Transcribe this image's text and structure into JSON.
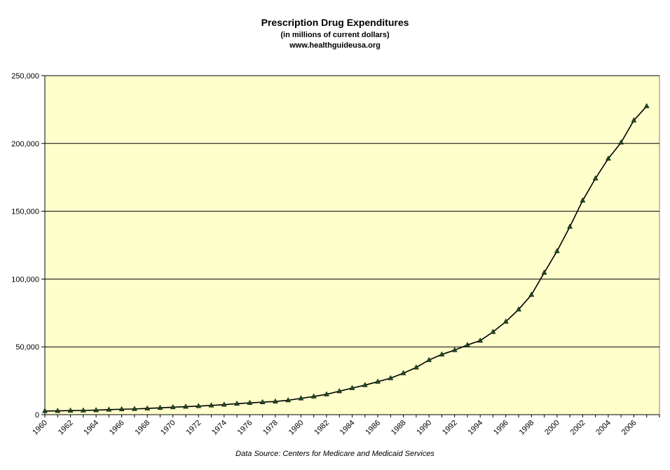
{
  "chart_data": {
    "type": "line",
    "title": "Prescription Drug Expenditures",
    "subtitle": "(in millions of current dollars)",
    "website": "www.healthguideusa.org",
    "source": "Data Source: Centers for Medicare and Medicaid Services",
    "xlabel": "",
    "ylabel": "",
    "ylim": [
      0,
      250000
    ],
    "yticks": [
      0,
      50000,
      100000,
      150000,
      200000,
      250000
    ],
    "ytick_labels": [
      "0",
      "50,000",
      "100,000",
      "150,000",
      "200,000",
      "250,000"
    ],
    "xlim": [
      1960,
      2008
    ],
    "xticks": [
      "1960",
      "1962",
      "1964",
      "1966",
      "1968",
      "1970",
      "1972",
      "1974",
      "1976",
      "1978",
      "1980",
      "1982",
      "1984",
      "1986",
      "1988",
      "1990",
      "1992",
      "1994",
      "1996",
      "1998",
      "2000",
      "2002",
      "2004",
      "2006"
    ],
    "grid": true,
    "plot_background": "#ffffcc",
    "line_color": "#000000",
    "marker_color": "#1f4d1f",
    "marker": "triangle",
    "series": [
      {
        "x": [
          1960,
          1961,
          1962,
          1963,
          1964,
          1965,
          1966,
          1967,
          1968,
          1969,
          1970,
          1971,
          1972,
          1973,
          1974,
          1975,
          1976,
          1977,
          1978,
          1979,
          1980,
          1981,
          1982,
          1983,
          1984,
          1985,
          1986,
          1987,
          1988,
          1989,
          1990,
          1991,
          1992,
          1993,
          1994,
          1995,
          1996,
          1997,
          1998,
          1999,
          2000,
          2001,
          2002,
          2003,
          2004,
          2005,
          2006,
          2007
        ],
        "values": [
          2700,
          2800,
          3000,
          3100,
          3300,
          3700,
          4000,
          4200,
          4600,
          5000,
          5500,
          5900,
          6300,
          6800,
          7400,
          8100,
          8700,
          9200,
          9700,
          10600,
          12000,
          13400,
          15000,
          17300,
          19600,
          21800,
          24300,
          26900,
          30600,
          34800,
          40300,
          44400,
          47600,
          51400,
          54600,
          61000,
          68600,
          77600,
          88400,
          104700,
          120600,
          138600,
          157900,
          174200,
          188800,
          200700,
          217000,
          227500
        ]
      }
    ]
  }
}
